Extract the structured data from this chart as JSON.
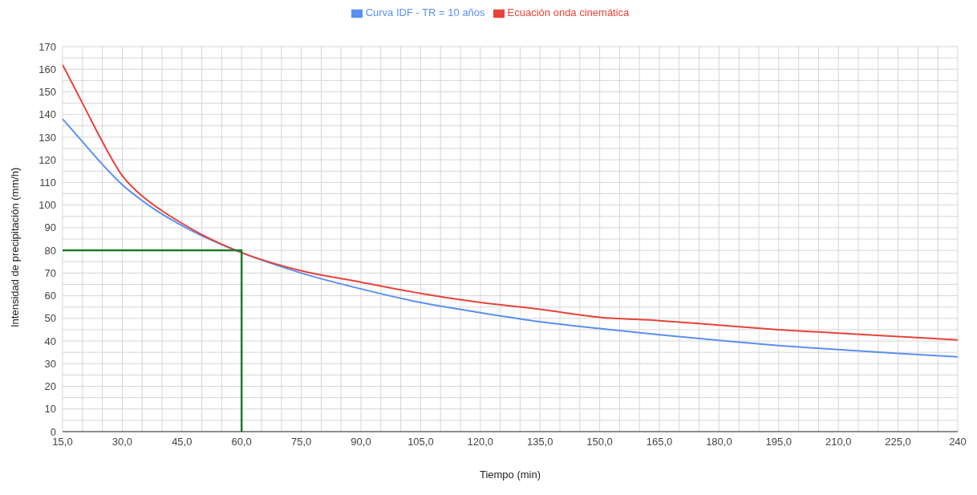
{
  "chart_data": {
    "type": "line",
    "xlabel": "Tiempo (min)",
    "ylabel": "Intensidad de precipitación (mm/h)",
    "legend": "top",
    "grid": true,
    "marker": "none",
    "line_style": "solid",
    "xlim": [
      15,
      240
    ],
    "ylim": [
      0,
      170
    ],
    "xticks": [
      {
        "value": 15,
        "label": "15,0"
      },
      {
        "value": 20,
        "label": null
      },
      {
        "value": 25,
        "label": null
      },
      {
        "value": 30,
        "label": "30,0"
      },
      {
        "value": 35,
        "label": null
      },
      {
        "value": 40,
        "label": null
      },
      {
        "value": 45,
        "label": "45,0"
      },
      {
        "value": 50,
        "label": null
      },
      {
        "value": 55,
        "label": null
      },
      {
        "value": 60,
        "label": "60,0"
      },
      {
        "value": 65,
        "label": null
      },
      {
        "value": 70,
        "label": null
      },
      {
        "value": 75,
        "label": "75,0"
      },
      {
        "value": 80,
        "label": null
      },
      {
        "value": 85,
        "label": null
      },
      {
        "value": 90,
        "label": "90,0"
      },
      {
        "value": 95,
        "label": null
      },
      {
        "value": 100,
        "label": null
      },
      {
        "value": 105,
        "label": "105,0"
      },
      {
        "value": 110,
        "label": null
      },
      {
        "value": 115,
        "label": null
      },
      {
        "value": 120,
        "label": "120,0"
      },
      {
        "value": 125,
        "label": null
      },
      {
        "value": 130,
        "label": null
      },
      {
        "value": 135,
        "label": "135,0"
      },
      {
        "value": 140,
        "label": null
      },
      {
        "value": 145,
        "label": null
      },
      {
        "value": 150,
        "label": "150,0"
      },
      {
        "value": 155,
        "label": null
      },
      {
        "value": 160,
        "label": null
      },
      {
        "value": 165,
        "label": "165,0"
      },
      {
        "value": 170,
        "label": null
      },
      {
        "value": 175,
        "label": null
      },
      {
        "value": 180,
        "label": "180,0"
      },
      {
        "value": 185,
        "label": null
      },
      {
        "value": 190,
        "label": null
      },
      {
        "value": 195,
        "label": "195,0"
      },
      {
        "value": 200,
        "label": null
      },
      {
        "value": 205,
        "label": null
      },
      {
        "value": 210,
        "label": "210,0"
      },
      {
        "value": 215,
        "label": null
      },
      {
        "value": 220,
        "label": null
      },
      {
        "value": 225,
        "label": "225,0"
      },
      {
        "value": 230,
        "label": null
      },
      {
        "value": 235,
        "label": null
      },
      240
    ],
    "yticks": [
      0,
      {
        "value": 5,
        "label": null
      },
      10,
      {
        "value": 15,
        "label": null
      },
      20,
      {
        "value": 25,
        "label": null
      },
      30,
      {
        "value": 35,
        "label": null
      },
      40,
      {
        "value": 45,
        "label": null
      },
      50,
      {
        "value": 55,
        "label": null
      },
      60,
      {
        "value": 65,
        "label": null
      },
      70,
      {
        "value": 75,
        "label": null
      },
      80,
      {
        "value": 85,
        "label": null
      },
      90,
      {
        "value": 95,
        "label": null
      },
      100,
      {
        "value": 105,
        "label": null
      },
      110,
      {
        "value": 115,
        "label": null
      },
      120,
      {
        "value": 125,
        "label": null
      },
      130,
      {
        "value": 135,
        "label": null
      },
      140,
      {
        "value": 145,
        "label": null
      },
      150,
      {
        "value": 155,
        "label": null
      },
      160,
      {
        "value": 165,
        "label": null
      },
      170
    ],
    "series": [
      {
        "name": "Curva IDF - TR = 10 años",
        "color": "#5b8ff0",
        "x": [
          15,
          20,
          25,
          30,
          35,
          40,
          45,
          50,
          60,
          75,
          90,
          105,
          120,
          135,
          150,
          165,
          180,
          195,
          210,
          225,
          240
        ],
        "values": [
          138,
          128,
          118,
          109,
          102,
          96,
          91,
          86.5,
          79,
          70,
          63,
          57,
          52.5,
          48.5,
          45.5,
          42.8,
          40.3,
          38,
          36.2,
          34.5,
          33
        ]
      },
      {
        "name": "Ecuación onda cinemática",
        "color": "#e8433a",
        "x": [
          15,
          20,
          25,
          30,
          35,
          40,
          45,
          50,
          60,
          75,
          90,
          105,
          120,
          135,
          150,
          165,
          180,
          195,
          210,
          225,
          240
        ],
        "values": [
          162,
          145,
          128,
          113,
          104,
          97.5,
          92,
          87,
          79,
          71,
          66,
          61,
          57,
          54,
          50.5,
          49,
          47,
          45,
          43.5,
          42,
          40.5
        ]
      },
      {
        "color": "#1e7a2a",
        "x": [
          15,
          60,
          60
        ],
        "values": [
          80,
          80,
          0
        ]
      }
    ]
  }
}
